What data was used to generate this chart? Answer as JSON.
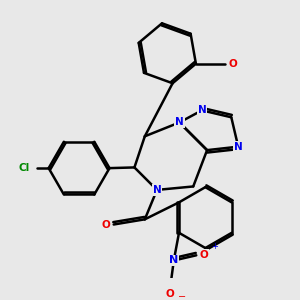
{
  "bg_color": "#e8e8e8",
  "bond_color": "#000000",
  "bond_width": 1.8,
  "atom_colors": {
    "N": "#0000ee",
    "O": "#ee0000",
    "Cl": "#008800",
    "C": "#000000"
  },
  "xlim": [
    0,
    10
  ],
  "ylim": [
    0,
    10
  ]
}
